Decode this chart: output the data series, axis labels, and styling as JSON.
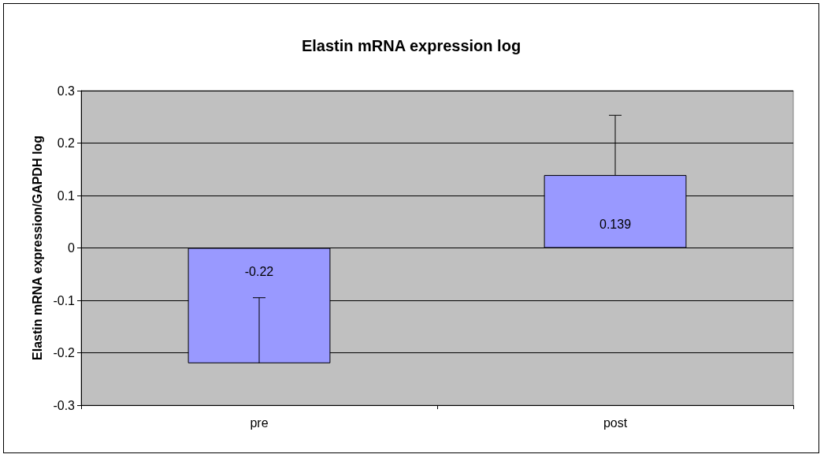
{
  "chart_data": {
    "type": "bar",
    "title": "Elastin mRNA expression log",
    "ylabel": "Elastin mRNA expression/GAPDH log",
    "categories": [
      "pre",
      "post"
    ],
    "series": [
      {
        "color": "#9999ff",
        "values": [
          -0.22,
          0.139
        ],
        "errors": [
          [
            -0.22,
            -0.095
          ],
          [
            0.139,
            0.253
          ]
        ]
      }
    ],
    "ylim": [
      -0.3,
      0.3
    ],
    "yticks": [
      -0.3,
      -0.2,
      -0.1,
      0,
      0.1,
      0.2,
      0.3
    ],
    "grid": "y",
    "data_labels": true
  }
}
